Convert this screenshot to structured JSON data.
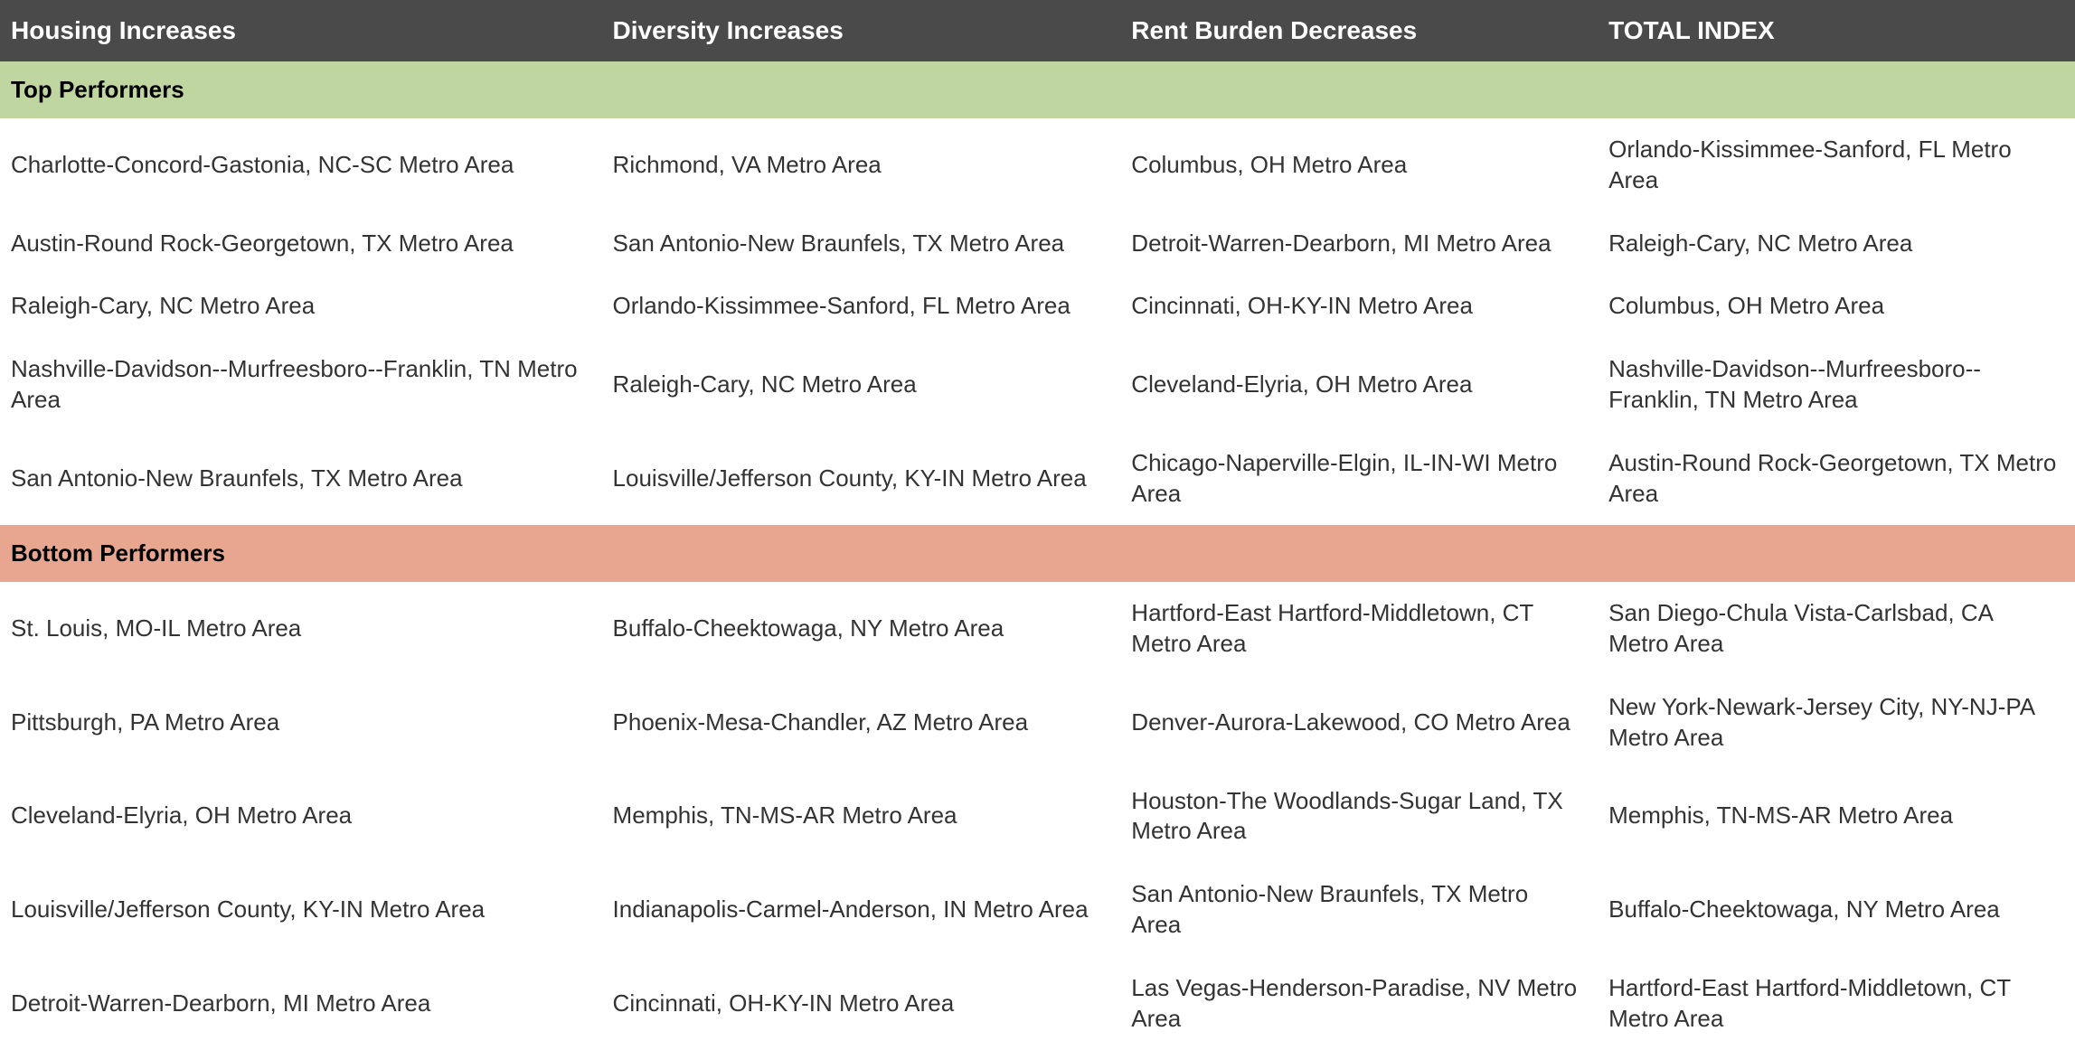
{
  "headers": {
    "col1": "Housing Increases",
    "col2": "Diversity Increases",
    "col3": "Rent Burden Decreases",
    "col4": "TOTAL INDEX"
  },
  "sections": {
    "top": {
      "label": "Top Performers",
      "bgcolor": "#c0d6a0",
      "rows": [
        {
          "c1": "Charlotte-Concord-Gastonia, NC-SC Metro Area",
          "c2": "Richmond, VA Metro Area",
          "c3": "Columbus, OH Metro Area",
          "c4": "Orlando-Kissimmee-Sanford, FL Metro Area"
        },
        {
          "c1": "Austin-Round Rock-Georgetown, TX Metro Area",
          "c2": "San Antonio-New Braunfels, TX Metro Area",
          "c3": "Detroit-Warren-Dearborn, MI Metro Area",
          "c4": "Raleigh-Cary, NC Metro Area"
        },
        {
          "c1": "Raleigh-Cary, NC Metro Area",
          "c2": "Orlando-Kissimmee-Sanford, FL Metro Area",
          "c3": "Cincinnati, OH-KY-IN Metro Area",
          "c4": "Columbus, OH Metro Area"
        },
        {
          "c1": "Nashville-Davidson--Murfreesboro--Franklin, TN Metro Area",
          "c2": "Raleigh-Cary, NC Metro Area",
          "c3": "Cleveland-Elyria, OH Metro Area",
          "c4": "Nashville-Davidson--Murfreesboro--Franklin, TN Metro Area"
        },
        {
          "c1": "San Antonio-New Braunfels, TX Metro Area",
          "c2": "Louisville/Jefferson County, KY-IN Metro Area",
          "c3": "Chicago-Naperville-Elgin, IL-IN-WI Metro Area",
          "c4": "Austin-Round Rock-Georgetown, TX Metro Area"
        }
      ]
    },
    "bottom": {
      "label": "Bottom Performers",
      "bgcolor": "#e8a690",
      "rows": [
        {
          "c1": "St. Louis, MO-IL Metro Area",
          "c2": "Buffalo-Cheektowaga, NY Metro Area",
          "c3": "Hartford-East Hartford-Middletown, CT Metro Area",
          "c4": "San Diego-Chula Vista-Carlsbad, CA Metro Area"
        },
        {
          "c1": "Pittsburgh, PA Metro Area",
          "c2": "Phoenix-Mesa-Chandler, AZ Metro Area",
          "c3": "Denver-Aurora-Lakewood, CO Metro Area",
          "c4": "New York-Newark-Jersey City, NY-NJ-PA Metro Area"
        },
        {
          "c1": "Cleveland-Elyria, OH Metro Area",
          "c2": "Memphis, TN-MS-AR Metro Area",
          "c3": "Houston-The Woodlands-Sugar Land, TX Metro Area",
          "c4": "Memphis, TN-MS-AR Metro Area"
        },
        {
          "c1": "Louisville/Jefferson County, KY-IN Metro Area",
          "c2": "Indianapolis-Carmel-Anderson, IN Metro Area",
          "c3": "San Antonio-New Braunfels, TX Metro Area",
          "c4": "Buffalo-Cheektowaga, NY Metro Area"
        },
        {
          "c1": "Detroit-Warren-Dearborn, MI Metro Area",
          "c2": "Cincinnati, OH-KY-IN Metro Area",
          "c3": "Las Vegas-Henderson-Paradise, NV Metro Area",
          "c4": "Hartford-East Hartford-Middletown, CT Metro Area"
        }
      ]
    }
  },
  "colors": {
    "header_bg": "#4a4a4a",
    "header_text": "#ffffff",
    "body_text": "#333333",
    "top_bg": "#c0d6a0",
    "bottom_bg": "#e8a690",
    "page_bg": "#ffffff"
  },
  "font_sizes": {
    "header": 28,
    "section": 26,
    "body": 26
  }
}
